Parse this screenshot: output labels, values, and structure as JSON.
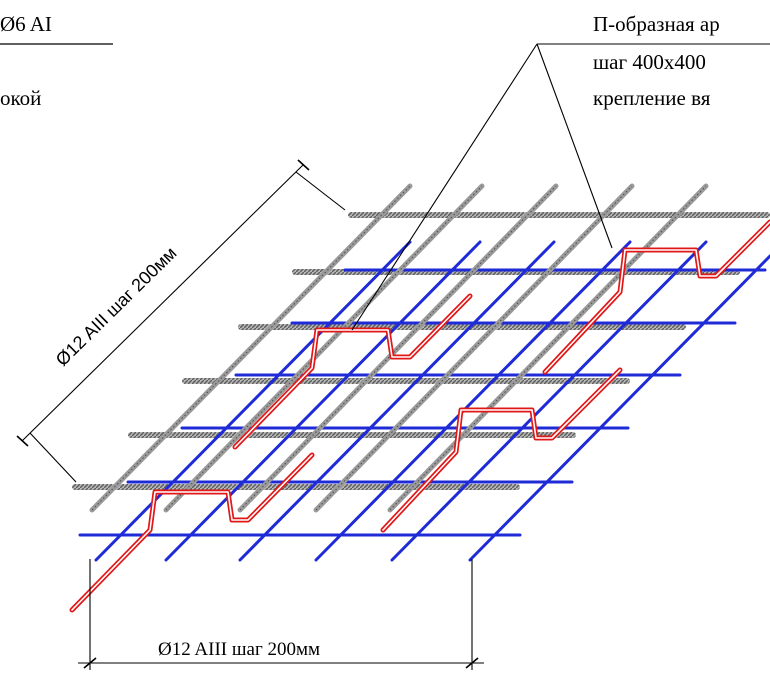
{
  "labels": {
    "top_left_1": "Ø6 AI",
    "top_left_2": "окой",
    "top_right_1": "П-образная ар",
    "top_right_2": "шаг 400х400",
    "top_right_3": "крепление вя",
    "dim_diagonal": "Ø12 AIII шаг 200мм",
    "dim_bottom": "Ø12 AIII  шаг 200мм"
  },
  "colors": {
    "grey_bar": "#8c8c8c",
    "blue_bar": "#1f2bd6",
    "red_bar": "#e01818",
    "line": "#000000"
  }
}
